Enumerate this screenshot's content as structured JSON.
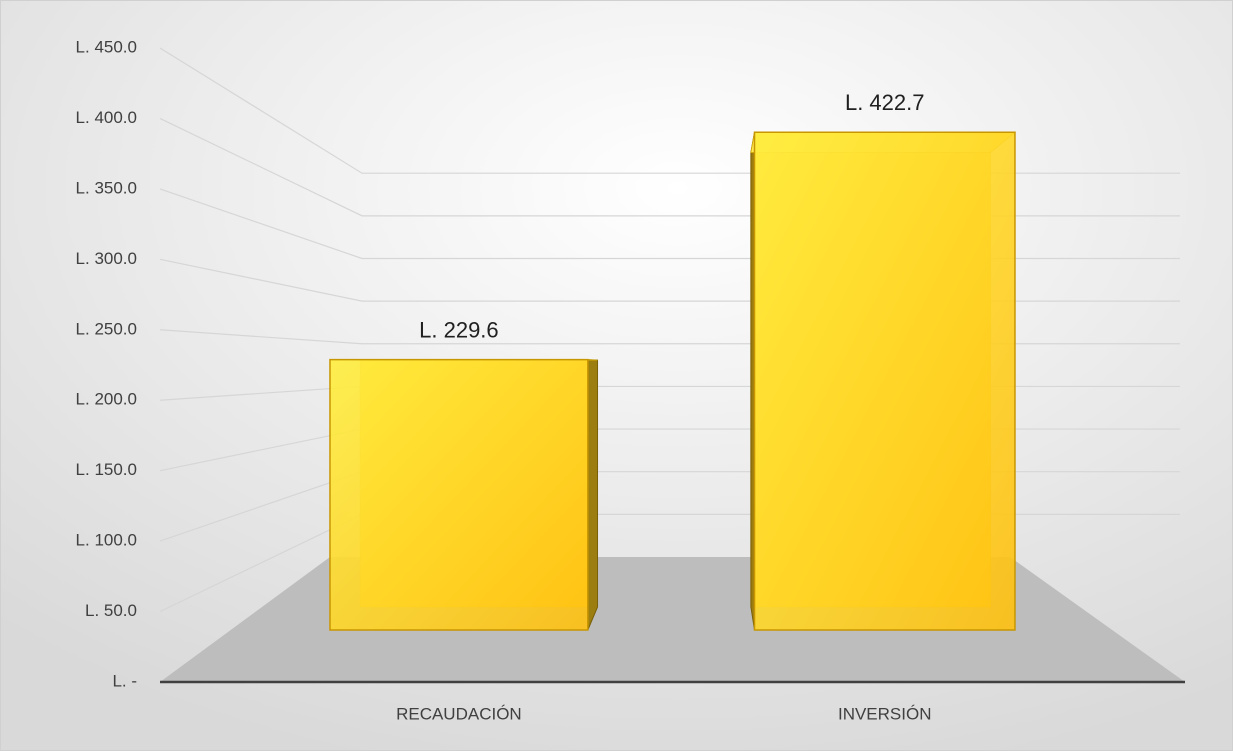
{
  "chart_data": {
    "type": "bar3d",
    "categories": [
      "RECAUDACIÓN",
      "INVERSIÓN"
    ],
    "values": [
      229.6,
      422.7
    ],
    "value_labels": [
      "L. 229.6",
      "L. 422.7"
    ],
    "color": "#ffc820",
    "ylim": [
      0,
      450
    ],
    "yticks": [
      {
        "value": 0,
        "label": "L. -"
      },
      {
        "value": 50,
        "label": "L. 50.0"
      },
      {
        "value": 100,
        "label": "L. 100.0"
      },
      {
        "value": 150,
        "label": "L. 150.0"
      },
      {
        "value": 200,
        "label": "L. 200.0"
      },
      {
        "value": 250,
        "label": "L. 250.0"
      },
      {
        "value": 300,
        "label": "L. 300.0"
      },
      {
        "value": 350,
        "label": "L. 350.0"
      },
      {
        "value": 400,
        "label": "L. 400.0"
      },
      {
        "value": 450,
        "label": "L. 450.0"
      }
    ],
    "grid": true
  }
}
